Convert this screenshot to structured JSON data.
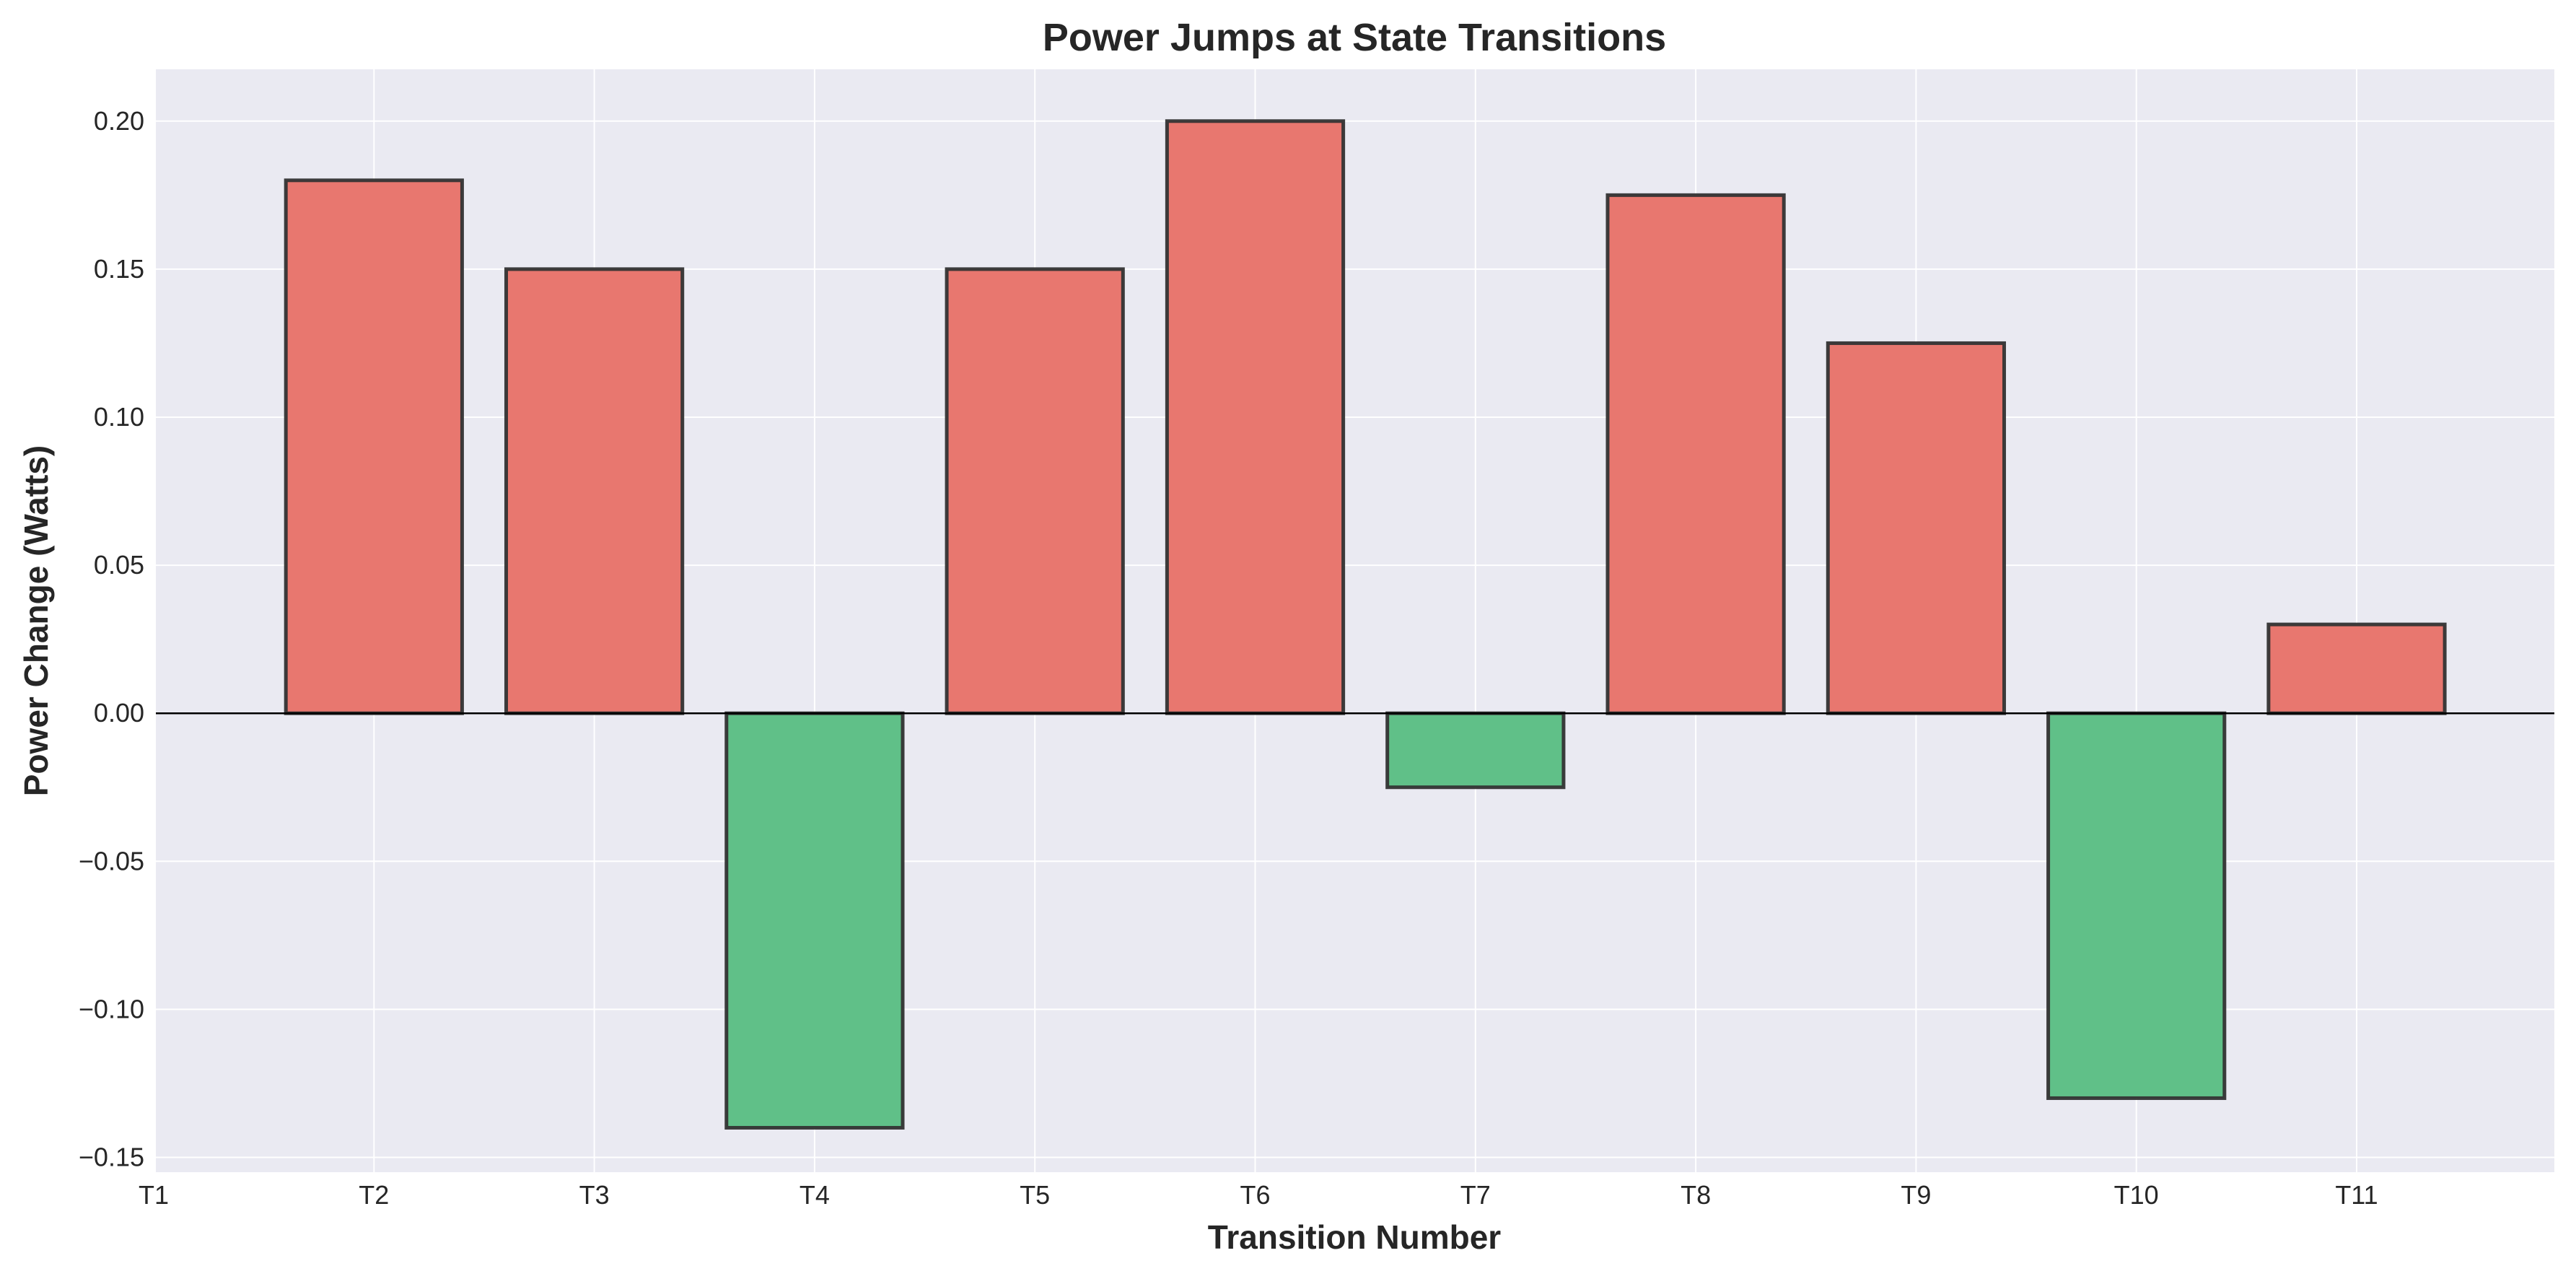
{
  "chart_data": {
    "type": "bar",
    "title": "Power Jumps at State Transitions",
    "xlabel": "Transition Number",
    "ylabel": "Power Change (Watts)",
    "categories": [
      "T1",
      "T2",
      "T3",
      "T4",
      "T5",
      "T6",
      "T7",
      "T8",
      "T9",
      "T10",
      "T11"
    ],
    "bars": [
      {
        "category": "T2",
        "value": 0.18
      },
      {
        "category": "T3",
        "value": 0.15
      },
      {
        "category": "T4",
        "value": -0.14
      },
      {
        "category": "T5",
        "value": 0.15
      },
      {
        "category": "T6",
        "value": 0.2
      },
      {
        "category": "T7",
        "value": -0.025
      },
      {
        "category": "T8",
        "value": 0.175
      },
      {
        "category": "T9",
        "value": 0.125
      },
      {
        "category": "T10",
        "value": -0.13
      },
      {
        "category": "T11",
        "value": 0.03
      }
    ],
    "ylim": [
      -0.155,
      0.2175
    ],
    "yticks": [
      "0.20",
      "0.15",
      "0.10",
      "0.05",
      "0.00",
      "−0.05",
      "−0.10",
      "−0.15"
    ],
    "ytick_values": [
      0.2,
      0.15,
      0.1,
      0.05,
      0.0,
      -0.05,
      -0.1,
      -0.15
    ],
    "grid": true,
    "zero_line": true,
    "colors": {
      "positive": "#e8776f",
      "negative": "#60c088",
      "bar_edge": "#333333",
      "plot_background": "#eaeaf2",
      "grid": "#ffffff"
    }
  }
}
